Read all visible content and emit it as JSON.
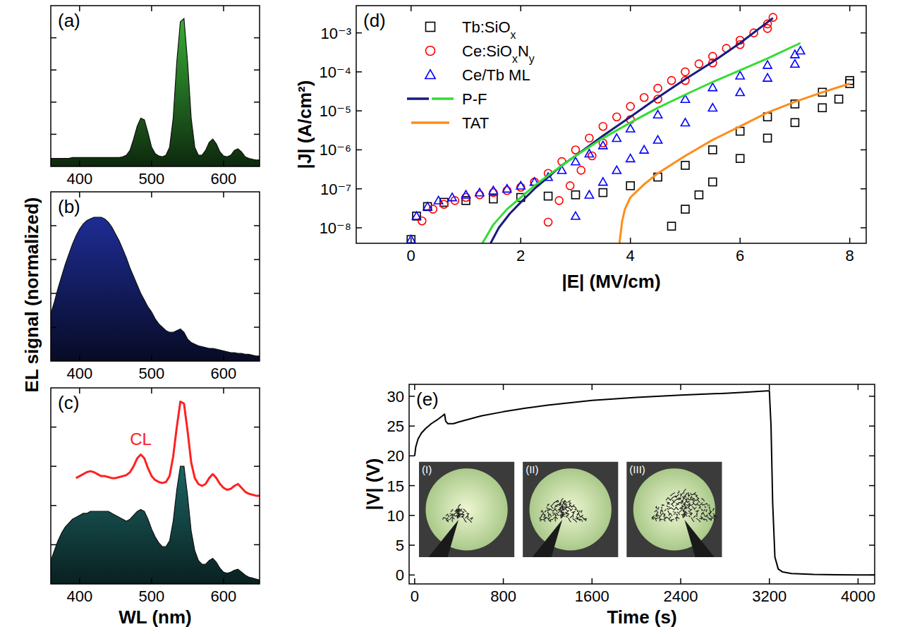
{
  "chart_data": [
    {
      "type": "area",
      "title": "(a)",
      "tick_labels": "x",
      "x": [
        360,
        365,
        370,
        375,
        380,
        385,
        390,
        395,
        400,
        405,
        410,
        415,
        420,
        425,
        430,
        435,
        440,
        445,
        450,
        455,
        460,
        465,
        470,
        475,
        480,
        485,
        490,
        495,
        500,
        505,
        510,
        515,
        520,
        525,
        530,
        535,
        540,
        545,
        550,
        555,
        560,
        565,
        570,
        575,
        580,
        585,
        590,
        595,
        600,
        605,
        610,
        615,
        620,
        625,
        630,
        635,
        640,
        645,
        650
      ],
      "xlim": [
        360,
        650
      ],
      "xticks": [
        400,
        500,
        600
      ],
      "ylim": [
        0,
        1
      ],
      "yticks": [
        0.2,
        0.4,
        0.6,
        0.8
      ],
      "series": [
        {
          "color": "#3db83a",
          "values": [
            0.05,
            0.05,
            0.05,
            0.05,
            0.05,
            0.05,
            0.055,
            0.055,
            0.055,
            0.055,
            0.055,
            0.055,
            0.055,
            0.055,
            0.055,
            0.055,
            0.055,
            0.055,
            0.055,
            0.055,
            0.06,
            0.07,
            0.1,
            0.17,
            0.25,
            0.3,
            0.29,
            0.21,
            0.12,
            0.08,
            0.065,
            0.06,
            0.07,
            0.12,
            0.3,
            0.65,
            0.9,
            0.92,
            0.65,
            0.3,
            0.12,
            0.07,
            0.07,
            0.1,
            0.15,
            0.17,
            0.14,
            0.09,
            0.065,
            0.06,
            0.07,
            0.1,
            0.11,
            0.09,
            0.06,
            0.05,
            0.045,
            0.04,
            0.04
          ]
        }
      ]
    },
    {
      "type": "area",
      "title": "(b)",
      "ylabel": "EL signal (normalized)",
      "tick_labels": "x",
      "x": [
        360,
        365,
        370,
        375,
        380,
        385,
        390,
        395,
        400,
        405,
        410,
        415,
        420,
        425,
        430,
        435,
        440,
        445,
        450,
        455,
        460,
        465,
        470,
        475,
        480,
        485,
        490,
        495,
        500,
        505,
        510,
        515,
        520,
        525,
        530,
        535,
        540,
        545,
        550,
        555,
        560,
        565,
        570,
        575,
        580,
        585,
        590,
        595,
        600,
        605,
        610,
        615,
        620,
        625,
        630,
        635,
        640,
        645,
        650
      ],
      "xlim": [
        360,
        650
      ],
      "xticks": [
        400,
        500,
        600
      ],
      "ylim": [
        0,
        1
      ],
      "yticks": [
        0.2,
        0.4,
        0.6,
        0.8
      ],
      "series": [
        {
          "color": "#2232a8",
          "values": [
            0.28,
            0.35,
            0.43,
            0.5,
            0.57,
            0.63,
            0.69,
            0.74,
            0.78,
            0.81,
            0.83,
            0.84,
            0.85,
            0.85,
            0.85,
            0.84,
            0.82,
            0.79,
            0.75,
            0.71,
            0.66,
            0.61,
            0.55,
            0.5,
            0.45,
            0.4,
            0.36,
            0.32,
            0.29,
            0.25,
            0.22,
            0.2,
            0.18,
            0.17,
            0.17,
            0.18,
            0.19,
            0.17,
            0.13,
            0.11,
            0.1,
            0.09,
            0.085,
            0.08,
            0.075,
            0.075,
            0.07,
            0.065,
            0.06,
            0.055,
            0.05,
            0.05,
            0.045,
            0.045,
            0.04,
            0.04,
            0.035,
            0.03,
            0.03
          ]
        }
      ]
    },
    {
      "type": "area",
      "title": "(c)",
      "xlabel": "WL (nm)",
      "tick_labels": "x",
      "x": [
        360,
        365,
        370,
        375,
        380,
        385,
        390,
        395,
        400,
        405,
        410,
        415,
        420,
        425,
        430,
        435,
        440,
        445,
        450,
        455,
        460,
        465,
        470,
        475,
        480,
        485,
        490,
        495,
        500,
        505,
        510,
        515,
        520,
        525,
        530,
        535,
        540,
        545,
        550,
        555,
        560,
        565,
        570,
        575,
        580,
        585,
        590,
        595,
        600,
        605,
        610,
        615,
        620,
        625,
        630,
        635,
        640,
        645,
        650
      ],
      "xlim": [
        360,
        650
      ],
      "xticks": [
        400,
        500,
        600
      ],
      "ylim": [
        0,
        1
      ],
      "yticks": [
        0.2,
        0.4,
        0.6,
        0.8
      ],
      "series": [
        {
          "type": "area",
          "color": "#2a9090",
          "values": [
            0.12,
            0.17,
            0.22,
            0.26,
            0.29,
            0.31,
            0.33,
            0.34,
            0.35,
            0.36,
            0.36,
            0.37,
            0.37,
            0.37,
            0.37,
            0.37,
            0.37,
            0.36,
            0.35,
            0.34,
            0.33,
            0.32,
            0.33,
            0.35,
            0.37,
            0.38,
            0.37,
            0.33,
            0.28,
            0.24,
            0.21,
            0.19,
            0.19,
            0.22,
            0.32,
            0.48,
            0.6,
            0.6,
            0.45,
            0.27,
            0.17,
            0.12,
            0.1,
            0.1,
            0.12,
            0.13,
            0.11,
            0.08,
            0.06,
            0.055,
            0.06,
            0.07,
            0.075,
            0.06,
            0.045,
            0.035,
            0.03,
            0.025,
            0.02
          ]
        },
        {
          "type": "line",
          "name": "CL",
          "color": "#ff2020",
          "line_style": "solid",
          "values": [
            null,
            null,
            null,
            null,
            null,
            null,
            null,
            0.54,
            0.55,
            0.56,
            0.57,
            0.575,
            0.57,
            0.56,
            0.55,
            0.55,
            0.545,
            0.54,
            0.54,
            0.545,
            0.55,
            0.555,
            0.57,
            0.6,
            0.64,
            0.66,
            0.64,
            0.59,
            0.55,
            0.53,
            0.52,
            0.515,
            0.52,
            0.55,
            0.65,
            0.8,
            0.93,
            0.92,
            0.78,
            0.62,
            0.54,
            0.51,
            0.5,
            0.51,
            0.54,
            0.56,
            0.54,
            0.51,
            0.49,
            0.48,
            0.485,
            0.5,
            0.51,
            0.49,
            0.47,
            0.46,
            0.455,
            0.45,
            0.45
          ]
        }
      ]
    },
    {
      "type": "scatter",
      "title": "(d)",
      "xlabel": "|E| (MV/cm)",
      "ylabel": "|J| (A/cm²)",
      "log": "y",
      "legend": "upper left",
      "xlim": [
        -1,
        8.3
      ],
      "xticks": [
        0,
        2,
        4,
        6,
        8
      ],
      "ylim": [
        4e-09,
        0.005
      ],
      "yticks": [
        {
          "value": 1e-08,
          "label": "10⁻⁸"
        },
        {
          "value": 1e-07,
          "label": "10⁻⁷"
        },
        {
          "value": 1e-06,
          "label": "10⁻⁶"
        },
        {
          "value": 1e-05,
          "label": "10⁻⁵"
        },
        {
          "value": 0.0001,
          "label": "10⁻⁴"
        },
        {
          "value": 0.001,
          "label": "10⁻³"
        }
      ],
      "series": [
        {
          "name": "Tb:SiOx",
          "color": "#000000",
          "marker": "square",
          "x": [
            0,
            0.1,
            0.3,
            0.6,
            1,
            1.5,
            2,
            2.5,
            3,
            3.5,
            4,
            4.5,
            5,
            5.5,
            6,
            6.5,
            7,
            7.5,
            8,
            4.75,
            5,
            5.25,
            5.5,
            6,
            6.5,
            7,
            7.5,
            7.8,
            8
          ],
          "values": [
            5e-09,
            2e-08,
            3.5e-08,
            4.5e-08,
            5e-08,
            5.5e-08,
            6e-08,
            6.5e-08,
            7e-08,
            8e-08,
            1.2e-07,
            2e-07,
            4e-07,
            1e-06,
            3e-06,
            7e-06,
            1.5e-05,
            3e-05,
            6e-05,
            1.1e-08,
            3e-08,
            7e-08,
            1.5e-07,
            6e-07,
            2e-06,
            5e-06,
            1.2e-05,
            2e-05,
            5e-05
          ]
        },
        {
          "name": "Ce:SiOxNy",
          "color": "#ff0000",
          "marker": "circle",
          "x": [
            0.2,
            0.4,
            0.6,
            0.8,
            1,
            1.25,
            1.5,
            1.75,
            2,
            2.25,
            2.5,
            2.75,
            3,
            3.25,
            3.5,
            3.75,
            4,
            4.25,
            4.5,
            4.75,
            5,
            5.25,
            5.5,
            5.75,
            6,
            6.25,
            6.5,
            6.6,
            2.5,
            2.7,
            2.9,
            3.1,
            3.3,
            3.5,
            4,
            4.5,
            5,
            5.5,
            6,
            6.5
          ],
          "values": [
            1.5e-08,
            3e-08,
            4e-08,
            5e-08,
            6e-08,
            7e-08,
            8e-08,
            9e-08,
            1.1e-07,
            1.5e-07,
            2.5e-07,
            5e-07,
            1e-06,
            2e-06,
            4e-06,
            7e-06,
            1.3e-05,
            2.2e-05,
            3.8e-05,
            6e-05,
            0.0001,
            0.00016,
            0.00025,
            0.0004,
            0.00065,
            0.001,
            0.0017,
            0.0025,
            1.4e-08,
            5e-08,
            1.2e-07,
            3e-07,
            7e-07,
            1.5e-06,
            6e-06,
            2e-05,
            6e-05,
            0.00017,
            0.0005,
            0.0013
          ]
        },
        {
          "name": "Ce/Tb ML",
          "color": "#0000ff",
          "marker": "triangle",
          "x": [
            0,
            0.1,
            0.3,
            0.5,
            0.75,
            1,
            1.25,
            1.5,
            1.75,
            2,
            2.25,
            2.5,
            2.75,
            3,
            3.25,
            3.5,
            3.75,
            4,
            4.5,
            5,
            5.5,
            6,
            6.5,
            7,
            7.1,
            3,
            3.25,
            3.5,
            3.75,
            4,
            4.25,
            4.5,
            5,
            5.5,
            6,
            6.5,
            7
          ],
          "values": [
            5e-09,
            2e-08,
            3.5e-08,
            5e-08,
            6e-08,
            7e-08,
            8e-08,
            9e-08,
            1e-07,
            1.2e-07,
            1.5e-07,
            2e-07,
            3e-07,
            5e-07,
            8e-07,
            1.3e-06,
            2e-06,
            3.5e-06,
            8e-06,
            2e-05,
            4e-05,
            8e-05,
            0.00015,
            0.00028,
            0.00035,
            2e-08,
            7e-08,
            1.5e-07,
            3e-07,
            6e-07,
            1e-06,
            1.8e-06,
            5e-06,
            1.2e-05,
            3e-05,
            7e-05,
            0.00016
          ]
        },
        {
          "name": "P-F",
          "type": "line",
          "line_style": "solid",
          "color": "#1a1a80",
          "x": [
            1.45,
            1.6,
            1.8,
            2,
            2.25,
            2.5,
            2.75,
            3,
            3.5,
            4,
            4.5,
            5,
            5.5,
            6,
            6.6
          ],
          "values": [
            4e-09,
            1e-08,
            2.3e-08,
            4.5e-08,
            1e-07,
            2e-07,
            4e-07,
            7e-07,
            2.3e-06,
            7e-06,
            2.2e-05,
            6.5e-05,
            0.00018,
            0.00055,
            0.0024
          ]
        },
        {
          "type": "line",
          "line_style": "solid",
          "color": "#33dd33",
          "x": [
            1.3,
            1.5,
            1.75,
            2,
            2.25,
            2.5,
            3,
            3.5,
            4,
            4.5,
            5,
            5.5,
            6,
            6.5,
            7.1
          ],
          "values": [
            4e-09,
            1.2e-08,
            3e-08,
            6e-08,
            1.2e-07,
            2.2e-07,
            7e-07,
            2e-06,
            5e-06,
            1.2e-05,
            2.6e-05,
            5.5e-05,
            0.00011,
            0.00022,
            0.00055
          ]
        },
        {
          "name": "TAT",
          "type": "line",
          "line_style": "solid",
          "color": "#ff8c1a",
          "x": [
            3.8,
            3.85,
            3.9,
            4,
            4.25,
            4.5,
            5,
            5.5,
            6,
            6.5,
            7,
            7.5,
            8
          ],
          "values": [
            4e-09,
            1.5e-08,
            3e-08,
            6e-08,
            1.3e-07,
            2.5e-07,
            7e-07,
            1.8e-06,
            4e-06,
            9e-06,
            1.7e-05,
            3e-05,
            5e-05
          ]
        }
      ]
    },
    {
      "type": "line",
      "title": "(e)",
      "xlabel": "Time (s)",
      "ylabel": "|V| (V)",
      "xlim": [
        -50,
        4150
      ],
      "xticks": [
        0,
        800,
        1600,
        2400,
        3200,
        4000
      ],
      "ylim": [
        -1.5,
        32
      ],
      "yticks": [
        0,
        5,
        10,
        15,
        20,
        25,
        30
      ],
      "annotations": [
        "(I)",
        "(II)",
        "(III)"
      ],
      "series": [
        {
          "color": "#000000",
          "line_style": "solid",
          "x": [
            0,
            10,
            30,
            60,
            100,
            150,
            200,
            250,
            270,
            280,
            300,
            350,
            400,
            500,
            600,
            800,
            1000,
            1200,
            1600,
            2000,
            2400,
            2800,
            3000,
            3180,
            3200,
            3215,
            3230,
            3250,
            3280,
            3320,
            3400,
            3600,
            3800,
            4000,
            4150
          ],
          "values": [
            20,
            21.5,
            22.8,
            23.8,
            24.6,
            25.4,
            26,
            26.7,
            27,
            25.8,
            25.4,
            25.4,
            25.7,
            26.2,
            26.7,
            27.4,
            28,
            28.5,
            29.3,
            29.8,
            30.2,
            30.5,
            30.7,
            30.9,
            30.9,
            25,
            12,
            3,
            1,
            0.5,
            0.25,
            0.1,
            0.05,
            0.02,
            0.01
          ]
        }
      ]
    }
  ]
}
